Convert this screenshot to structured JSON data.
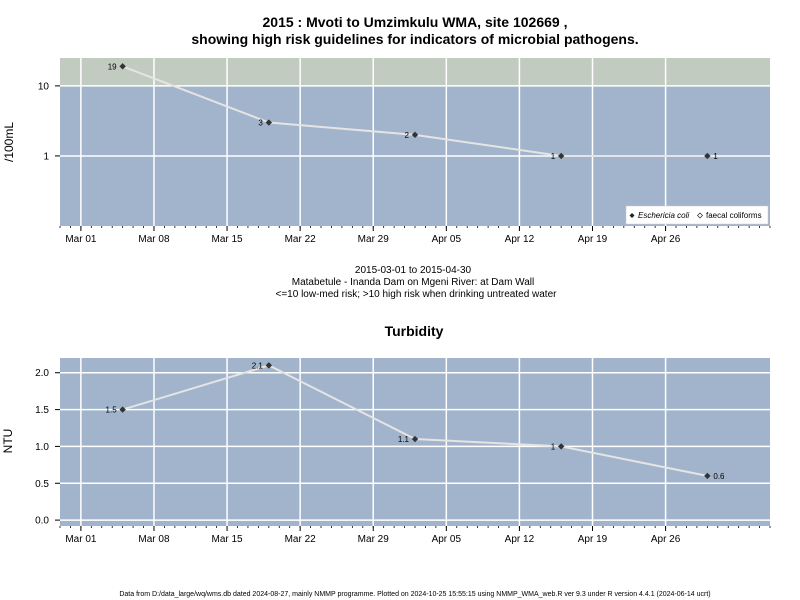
{
  "chart_data": [
    {
      "type": "line",
      "title": "2015 : Mvoti to Umzimkulu WMA, site 102669 ,",
      "subtitle": "showing high risk guidelines for indicators of microbial pathogens.",
      "ylabel": "/100mL",
      "xlabel_lines": [
        "2015-03-01 to 2015-04-30",
        "Matabetule - Inanda Dam on Mgeni River: at Dam Wall",
        "<=10 low-med risk; >10 high risk when drinking untreated water"
      ],
      "y_scale": "log",
      "ylim": [
        0.1,
        25
      ],
      "y_ticks": [
        {
          "value": 1,
          "label": "1"
        },
        {
          "value": 10,
          "label": "10"
        }
      ],
      "high_risk_threshold": 10,
      "x_ticks": [
        "2015-03-01",
        "2015-03-08",
        "2015-03-15",
        "2015-03-22",
        "2015-03-29",
        "2015-04-05",
        "2015-04-12",
        "2015-04-19",
        "2015-04-26"
      ],
      "x_tick_labels": [
        "Mar 01",
        "Mar 08",
        "Mar 15",
        "Mar 22",
        "Mar 29",
        "Apr 05",
        "Apr 12",
        "Apr 19",
        "Apr 26"
      ],
      "xlim": [
        "2015-02-27",
        "2015-05-06"
      ],
      "series": [
        {
          "name": "Eschericia coli",
          "points": [
            {
              "x": "2015-03-05",
              "y": 19,
              "label": "19"
            },
            {
              "x": "2015-03-19",
              "y": 3,
              "label": "3"
            },
            {
              "x": "2015-04-02",
              "y": 2,
              "label": "2"
            },
            {
              "x": "2015-04-16",
              "y": 1,
              "label": "1"
            },
            {
              "x": "2015-04-30",
              "y": 1,
              "label": "1"
            }
          ]
        }
      ],
      "legend": {
        "position": "bottom-right",
        "entries": [
          {
            "label": "Eschericia coli",
            "italic": true
          },
          {
            "label": "faecal coliforms",
            "italic": false
          }
        ]
      },
      "grid": true
    },
    {
      "type": "line",
      "title": "Turbidity",
      "ylabel": "NTU",
      "ylim": [
        -0.08,
        2.2
      ],
      "y_ticks": [
        {
          "value": 0,
          "label": "0.0"
        },
        {
          "value": 0.5,
          "label": "0.5"
        },
        {
          "value": 1,
          "label": "1.0"
        },
        {
          "value": 1.5,
          "label": "1.5"
        },
        {
          "value": 2,
          "label": "2.0"
        }
      ],
      "x_ticks": [
        "2015-03-01",
        "2015-03-08",
        "2015-03-15",
        "2015-03-22",
        "2015-03-29",
        "2015-04-05",
        "2015-04-12",
        "2015-04-19",
        "2015-04-26"
      ],
      "x_tick_labels": [
        "Mar 01",
        "Mar 08",
        "Mar 15",
        "Mar 22",
        "Mar 29",
        "Apr 05",
        "Apr 12",
        "Apr 19",
        "Apr 26"
      ],
      "xlim": [
        "2015-02-27",
        "2015-05-06"
      ],
      "series": [
        {
          "points": [
            {
              "x": "2015-03-05",
              "y": 1.5,
              "label": "1.5"
            },
            {
              "x": "2015-03-19",
              "y": 2.1,
              "label": "2.1"
            },
            {
              "x": "2015-04-02",
              "y": 1.1,
              "label": "1.1"
            },
            {
              "x": "2015-04-16",
              "y": 1,
              "label": "1"
            },
            {
              "x": "2015-04-30",
              "y": 0.6,
              "label": "0.6"
            }
          ]
        }
      ],
      "grid": true
    }
  ],
  "colors": {
    "panel_bg": "#a2b4cb",
    "high_risk_band": "#c2cbc0",
    "grid": "#ffffff",
    "line": "#e4e4e4",
    "marker": "#333333"
  },
  "footer": "Data from D:/data_large/wq/wms.db dated 2024-08-27, mainly NMMP programme. Plotted on 2024-10-25 15:55:15 using NMMP_WMA_web.R ver 9.3 under R version 4.4.1 (2024-06-14 ucrt)"
}
